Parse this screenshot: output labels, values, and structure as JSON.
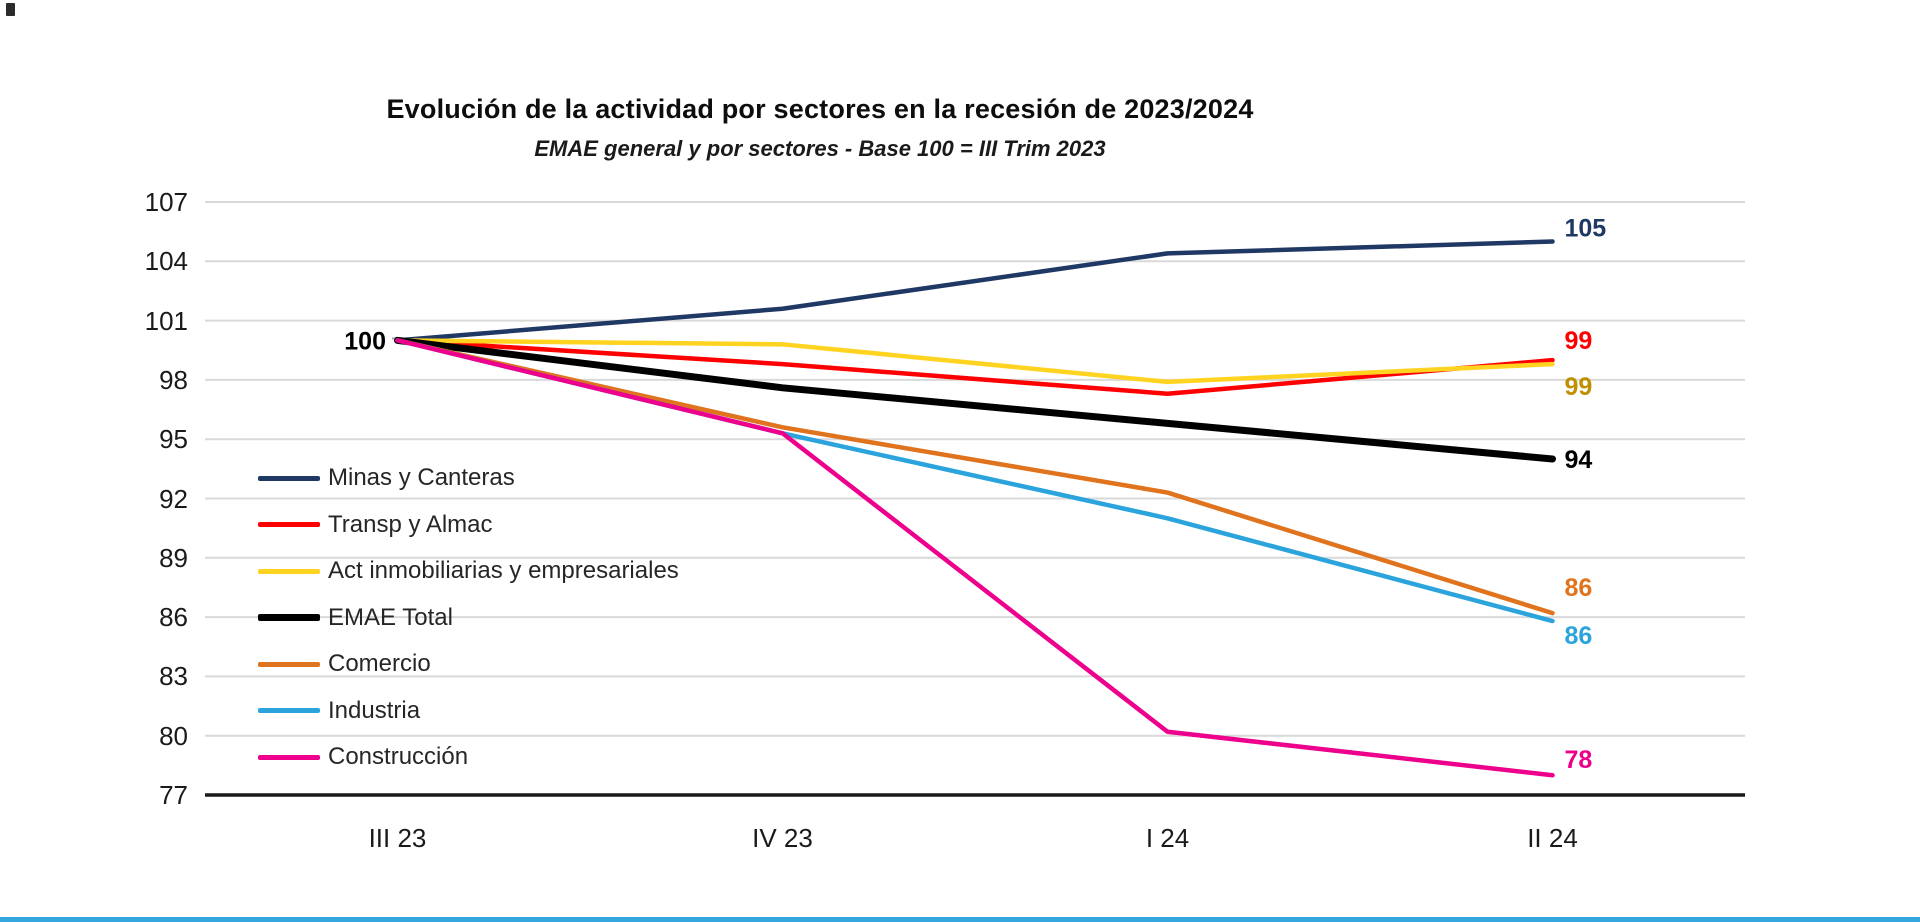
{
  "page": {
    "background": "#FFFFFF"
  },
  "decor": {
    "bottom_edge_color": "#36A7DE",
    "corner_artifact_color": "#2B2B2B"
  },
  "chart_data": {
    "type": "line",
    "title": "Evolución de la actividad por sectores en la recesión de 2023/2024",
    "subtitle": "EMAE general y por sectores - Base 100 = III Trim 2023",
    "categories": [
      "III 23",
      "IV 23",
      "I 24",
      "II 24"
    ],
    "ylim": [
      77,
      107
    ],
    "yticks": [
      107,
      104,
      101,
      98,
      95,
      92,
      89,
      86,
      83,
      80,
      77
    ],
    "grid": true,
    "gridline_color": "#D9D9D9",
    "axis_line_color": "#1A1A1A",
    "legend_position": "inside-left",
    "base_label": "100",
    "base_value": 100,
    "series": [
      {
        "name": "Minas y Canteras",
        "color": "#1F3864",
        "values": [
          100,
          101.6,
          104.4,
          105
        ],
        "end_label": "105"
      },
      {
        "name": "Transp y Almac",
        "color": "#FE0000",
        "values": [
          100,
          98.8,
          97.3,
          99
        ],
        "end_label": "99"
      },
      {
        "name": "Act inmobiliarias y empresariales",
        "color": "#FFD320",
        "values": [
          100,
          99.8,
          97.9,
          98.8
        ],
        "end_label": "99",
        "end_label_color": "#BF9000"
      },
      {
        "name": "EMAE Total",
        "color": "#000000",
        "values": [
          100,
          97.6,
          95.8,
          94
        ],
        "end_label": "94",
        "emphasis": true
      },
      {
        "name": "Comercio",
        "color": "#E0731D",
        "values": [
          100,
          95.6,
          92.3,
          86.2
        ],
        "end_label": "86"
      },
      {
        "name": "Industria",
        "color": "#2BA3DC",
        "values": [
          100,
          95.3,
          91,
          85.8
        ],
        "end_label": "86"
      },
      {
        "name": "Construcción",
        "color": "#EC008C",
        "values": [
          100,
          95.3,
          80.2,
          78
        ],
        "end_label": "78"
      }
    ]
  }
}
